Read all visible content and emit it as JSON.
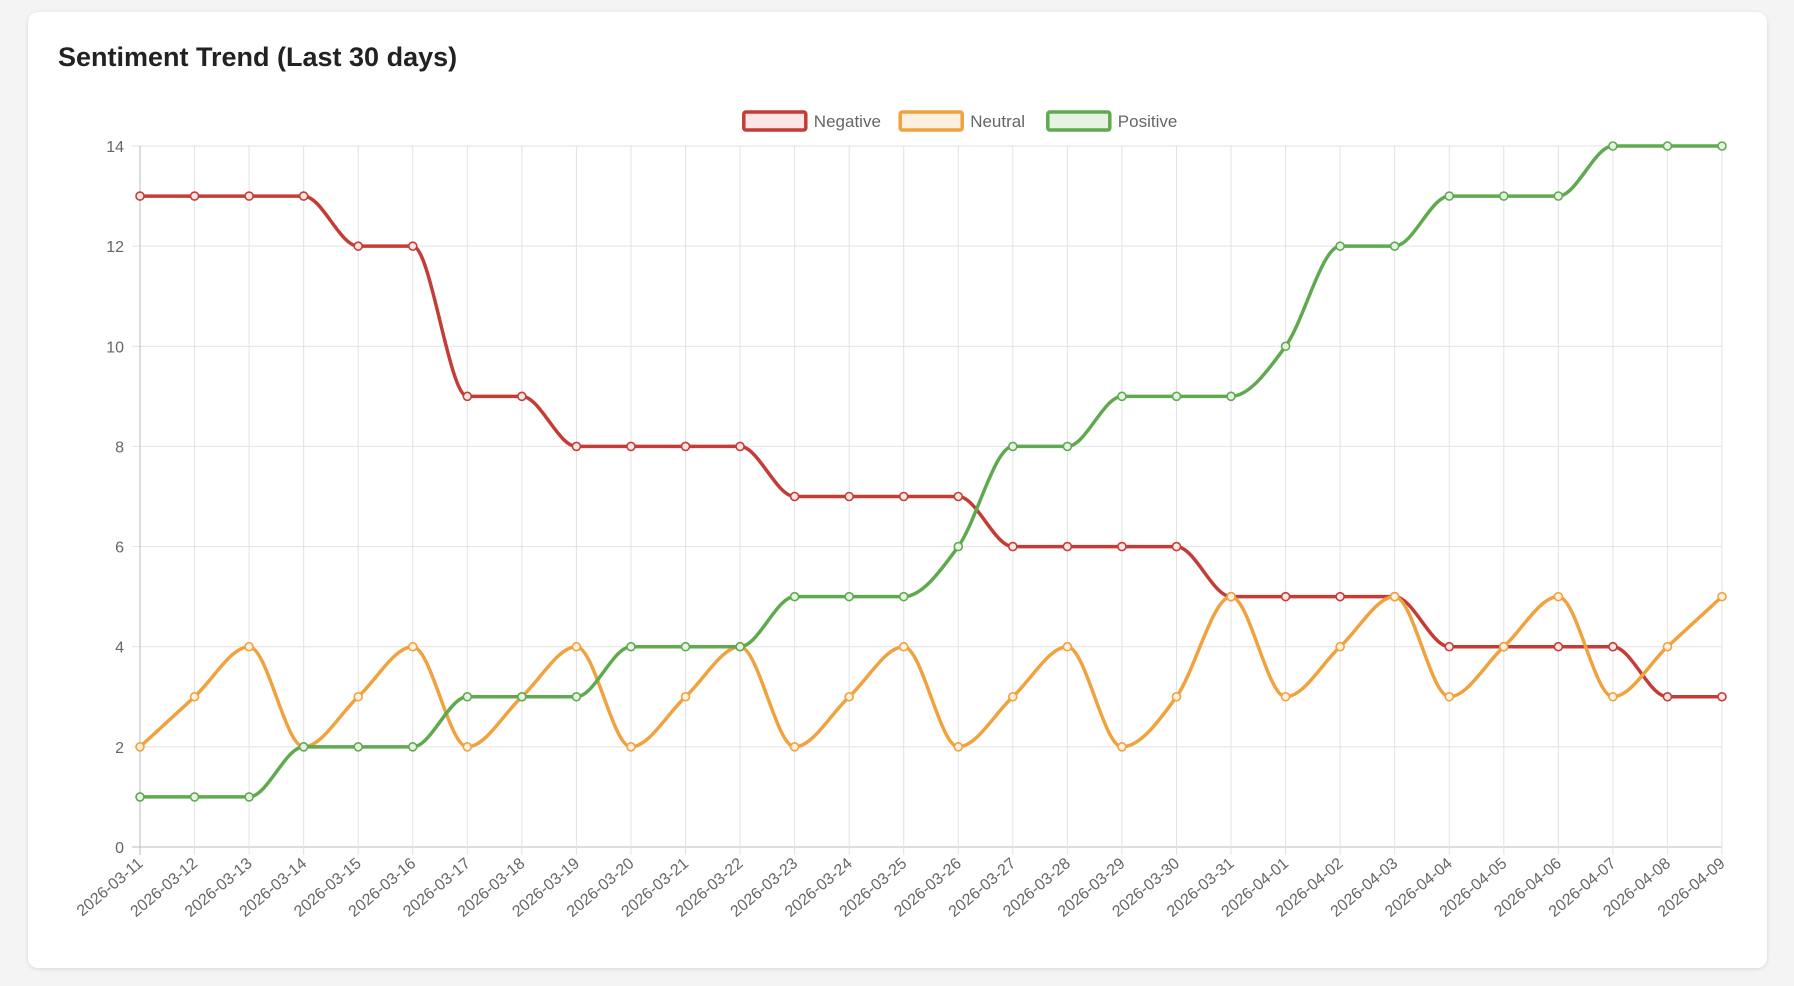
{
  "card": {
    "title": "Sentiment Trend (Last 30 days)"
  },
  "colors": {
    "negative": "#c43c35",
    "neutral": "#f0a23e",
    "positive": "#5faa4f"
  },
  "chart_data": {
    "type": "line",
    "title": "Sentiment Trend (Last 30 days)",
    "xlabel": "",
    "ylabel": "",
    "ylim": [
      0,
      14
    ],
    "yticks": [
      0,
      2,
      4,
      6,
      8,
      10,
      12,
      14
    ],
    "grid": true,
    "legend_position": "top",
    "categories": [
      "2026-03-11",
      "2026-03-12",
      "2026-03-13",
      "2026-03-14",
      "2026-03-15",
      "2026-03-16",
      "2026-03-17",
      "2026-03-18",
      "2026-03-19",
      "2026-03-20",
      "2026-03-21",
      "2026-03-22",
      "2026-03-23",
      "2026-03-24",
      "2026-03-25",
      "2026-03-26",
      "2026-03-27",
      "2026-03-28",
      "2026-03-29",
      "2026-03-30",
      "2026-03-31",
      "2026-04-01",
      "2026-04-02",
      "2026-04-03",
      "2026-04-04",
      "2026-04-05",
      "2026-04-06",
      "2026-04-07",
      "2026-04-08",
      "2026-04-09"
    ],
    "series": [
      {
        "name": "Negative",
        "color": "#c43c35",
        "fill": "#fbe6e5",
        "values": [
          13,
          13,
          13,
          13,
          12,
          12,
          9,
          9,
          8,
          8,
          8,
          8,
          7,
          7,
          7,
          7,
          6,
          6,
          6,
          6,
          5,
          5,
          5,
          5,
          4,
          4,
          4,
          4,
          3,
          3
        ]
      },
      {
        "name": "Neutral",
        "color": "#f0a23e",
        "fill": "#fdf0de",
        "values": [
          2,
          3,
          4,
          2,
          3,
          4,
          2,
          3,
          4,
          2,
          3,
          4,
          2,
          3,
          4,
          2,
          3,
          4,
          2,
          3,
          5,
          3,
          4,
          5,
          3,
          4,
          5,
          3,
          4,
          5
        ]
      },
      {
        "name": "Positive",
        "color": "#5faa4f",
        "fill": "#e6f3e3",
        "values": [
          1,
          1,
          1,
          2,
          2,
          2,
          3,
          3,
          3,
          4,
          4,
          4,
          5,
          5,
          5,
          6,
          8,
          8,
          9,
          9,
          9,
          10,
          12,
          12,
          13,
          13,
          13,
          14,
          14,
          14
        ]
      }
    ]
  }
}
